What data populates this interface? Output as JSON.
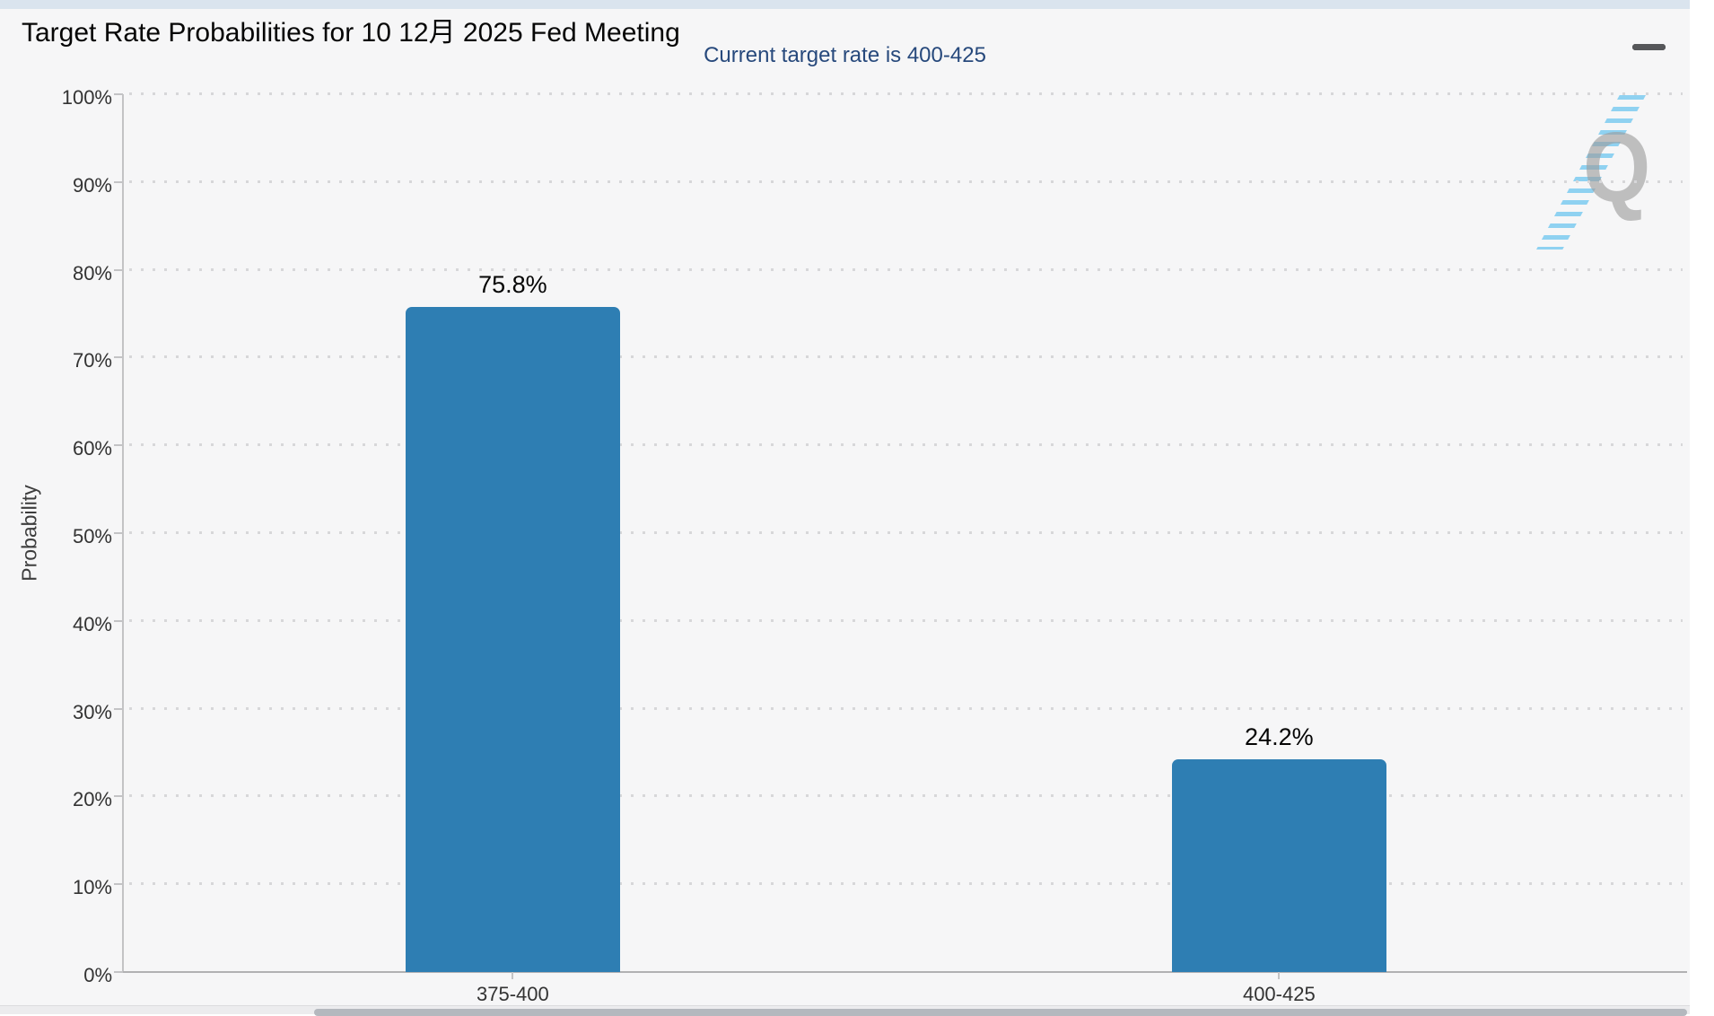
{
  "page": {
    "title": "Target Rate Probabilities for 10 12月 2025 Fed Meeting",
    "subtitle": "Current target rate is 400-425"
  },
  "toolbar": {
    "menu_icon": "hamburger-menu-icon"
  },
  "watermark": {
    "letter": "Q"
  },
  "chart_data": {
    "type": "bar",
    "title": "Target Rate Probabilities for 10 12月 2025 Fed Meeting",
    "subtitle": "Current target rate is 400-425",
    "categories": [
      "375-400",
      "400-425"
    ],
    "series": [
      {
        "name": "Probability",
        "values": [
          75.8,
          24.2
        ]
      }
    ],
    "value_labels": [
      "75.8%",
      "24.2%"
    ],
    "xlabel": "",
    "ylabel": "Probability",
    "ylim": [
      0,
      100
    ],
    "yticks": [
      "0%",
      "10%",
      "20%",
      "30%",
      "40%",
      "50%",
      "60%",
      "70%",
      "80%",
      "90%",
      "100%"
    ],
    "grid": "dotted-horizontal",
    "legend_position": "none",
    "bar_color": "#2e7eb3"
  }
}
